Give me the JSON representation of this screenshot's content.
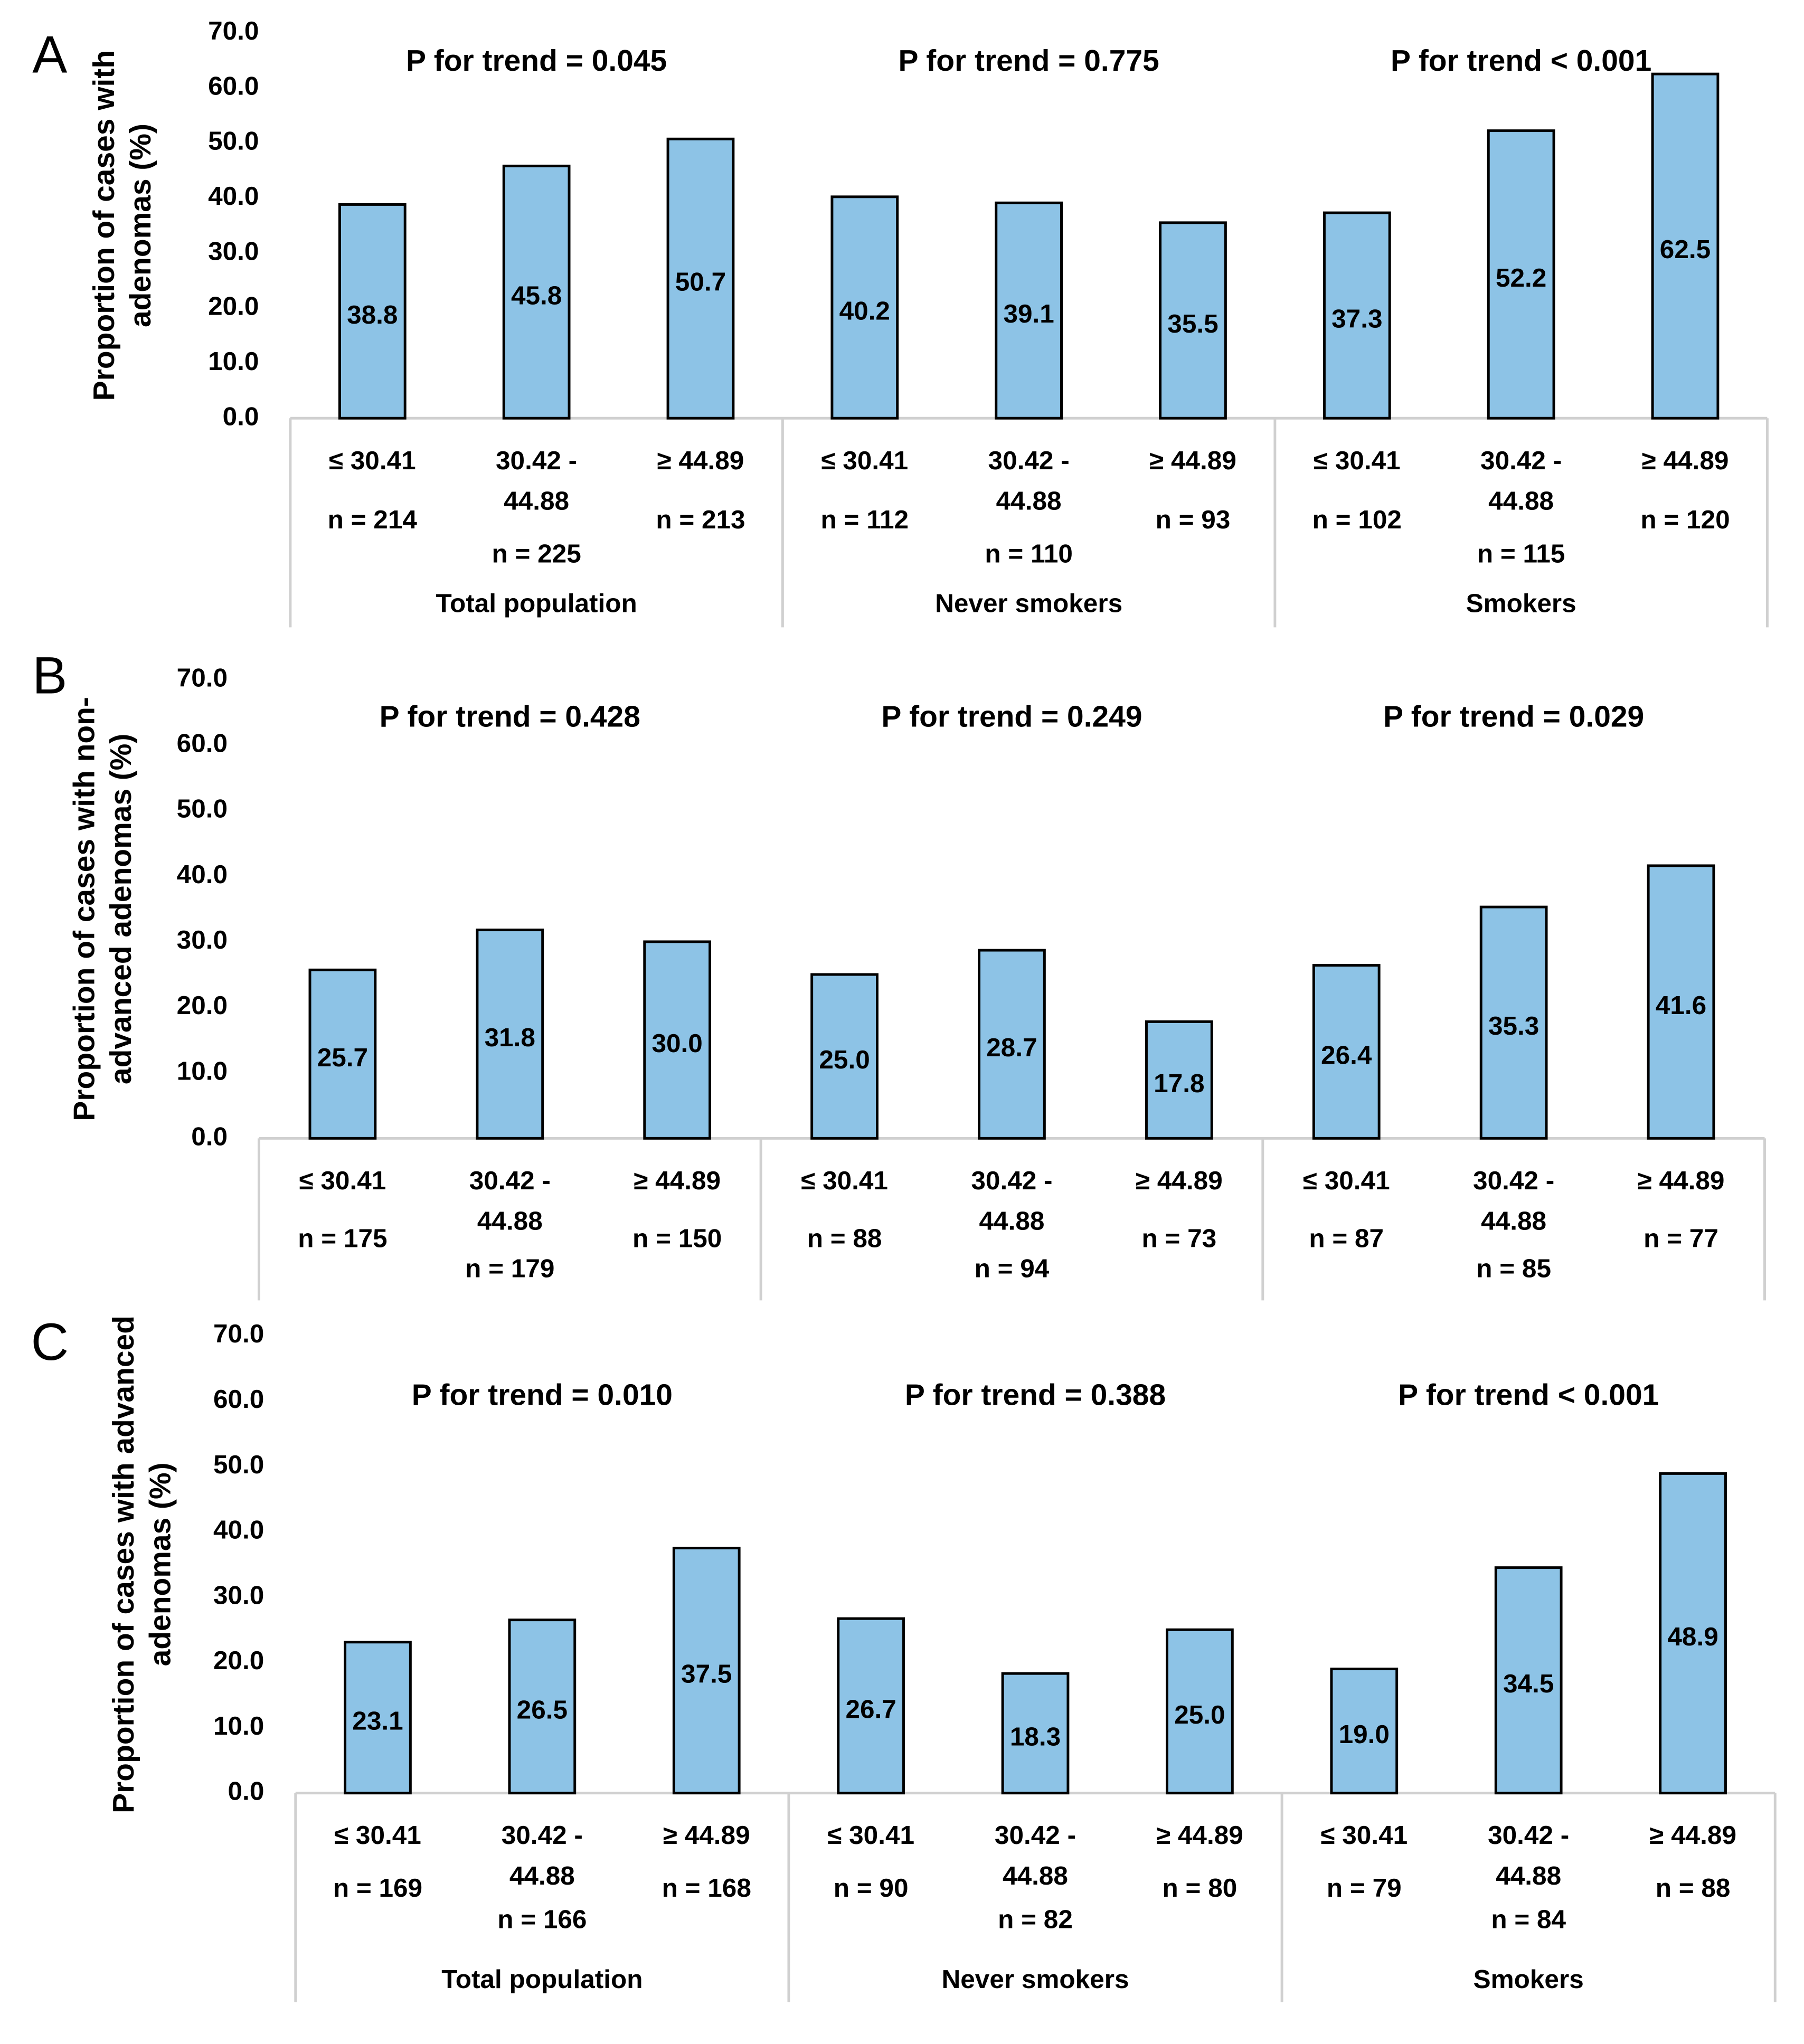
{
  "chart_data": [
    {
      "type": "bar",
      "panel": "A",
      "y_label": [
        "Proportion of cases with",
        "adenomas (%)"
      ],
      "color": "#8dc3e6",
      "ylim": [
        0,
        70
      ],
      "yticks": [
        {
          "value": 0,
          "label": "0.0"
        },
        {
          "value": 10,
          "label": "10.0"
        },
        {
          "value": 20,
          "label": "20.0"
        },
        {
          "value": 30,
          "label": "30.0"
        },
        {
          "value": 40,
          "label": "40.0"
        },
        {
          "value": 50,
          "label": "50.0"
        },
        {
          "value": 60,
          "label": "60.0"
        },
        {
          "value": 70,
          "label": "70.0"
        }
      ],
      "categories": [
        "≤ 30.41",
        "30.42 - 44.88",
        "≥ 44.89",
        "≤ 30.41",
        "30.42 - 44.88",
        "≥ 44.89",
        "≤ 30.41",
        "30.42 - 44.88",
        "≥ 44.89"
      ],
      "n_labels": [
        "n = 214",
        "n = 225",
        "n = 213",
        "n = 112",
        "n = 110",
        "n = 93",
        "n = 102",
        "n = 115",
        "n = 120"
      ],
      "values": [
        38.8,
        45.8,
        50.7,
        40.2,
        39.1,
        35.5,
        37.3,
        52.2,
        62.5
      ],
      "value_labels": [
        "38.8",
        "45.8",
        "50.7",
        "40.2",
        "39.1",
        "35.5",
        "37.3",
        "52.2",
        "62.5"
      ],
      "group_names": [
        "Total population",
        "Never smokers",
        "Smokers"
      ],
      "trend_labels": [
        "P for trend = 0.045",
        "P for trend = 0.775",
        "P for trend < 0.001"
      ]
    },
    {
      "type": "bar",
      "panel": "B",
      "y_label": [
        "Proportion of cases with non-",
        "advanced adenomas (%)"
      ],
      "color": "#8dc3e6",
      "ylim": [
        0,
        70
      ],
      "yticks": [
        {
          "value": 0,
          "label": "0.0"
        },
        {
          "value": 10,
          "label": "10.0"
        },
        {
          "value": 20,
          "label": "20.0"
        },
        {
          "value": 30,
          "label": "30.0"
        },
        {
          "value": 40,
          "label": "40.0"
        },
        {
          "value": 50,
          "label": "50.0"
        },
        {
          "value": 60,
          "label": "60.0"
        },
        {
          "value": 70,
          "label": "70.0"
        }
      ],
      "categories": [
        "≤ 30.41",
        "30.42 - 44.88",
        "≥ 44.89",
        "≤ 30.41",
        "30.42 - 44.88",
        "≥ 44.89",
        "≤ 30.41",
        "30.42 - 44.88",
        "≥ 44.89"
      ],
      "n_labels": [
        "n = 175",
        "n = 179",
        "n = 150",
        "n = 88",
        "n = 94",
        "n = 73",
        "n = 87",
        "n = 85",
        "n = 77"
      ],
      "values": [
        25.7,
        31.8,
        30.0,
        25.0,
        28.7,
        17.8,
        26.4,
        35.3,
        41.6
      ],
      "value_labels": [
        "25.7",
        "31.8",
        "30.0",
        "25.0",
        "28.7",
        "17.8",
        "26.4",
        "35.3",
        "41.6"
      ],
      "trend_labels": [
        "P for trend = 0.428",
        "P for trend = 0.249",
        "P for trend = 0.029"
      ]
    },
    {
      "type": "bar",
      "panel": "C",
      "y_label": [
        "Proportion of cases with advanced",
        "adenomas (%)"
      ],
      "color": "#8dc3e6",
      "ylim": [
        0,
        70
      ],
      "yticks": [
        {
          "value": 0,
          "label": "0.0"
        },
        {
          "value": 10,
          "label": "10.0"
        },
        {
          "value": 20,
          "label": "20.0"
        },
        {
          "value": 30,
          "label": "30.0"
        },
        {
          "value": 40,
          "label": "40.0"
        },
        {
          "value": 50,
          "label": "50.0"
        },
        {
          "value": 60,
          "label": "60.0"
        },
        {
          "value": 70,
          "label": "70.0"
        }
      ],
      "categories": [
        "≤ 30.41",
        "30.42 - 44.88",
        "≥ 44.89",
        "≤ 30.41",
        "30.42 - 44.88",
        "≥ 44.89",
        "≤ 30.41",
        "30.42 - 44.88",
        "≥ 44.89"
      ],
      "n_labels": [
        "n = 169",
        "n = 166",
        "n = 168",
        "n = 90",
        "n = 82",
        "n = 80",
        "n = 79",
        "n = 84",
        "n = 88"
      ],
      "values": [
        23.1,
        26.5,
        37.5,
        26.7,
        18.3,
        25.0,
        19.0,
        34.5,
        48.9
      ],
      "value_labels": [
        "23.1",
        "26.5",
        "37.5",
        "26.7",
        "18.3",
        "25.0",
        "19.0",
        "34.5",
        "48.9"
      ],
      "group_names": [
        "Total population",
        "Never smokers",
        "Smokers"
      ],
      "trend_labels": [
        "P for trend = 0.010",
        "P for trend = 0.388",
        "P for trend < 0.001"
      ]
    }
  ]
}
